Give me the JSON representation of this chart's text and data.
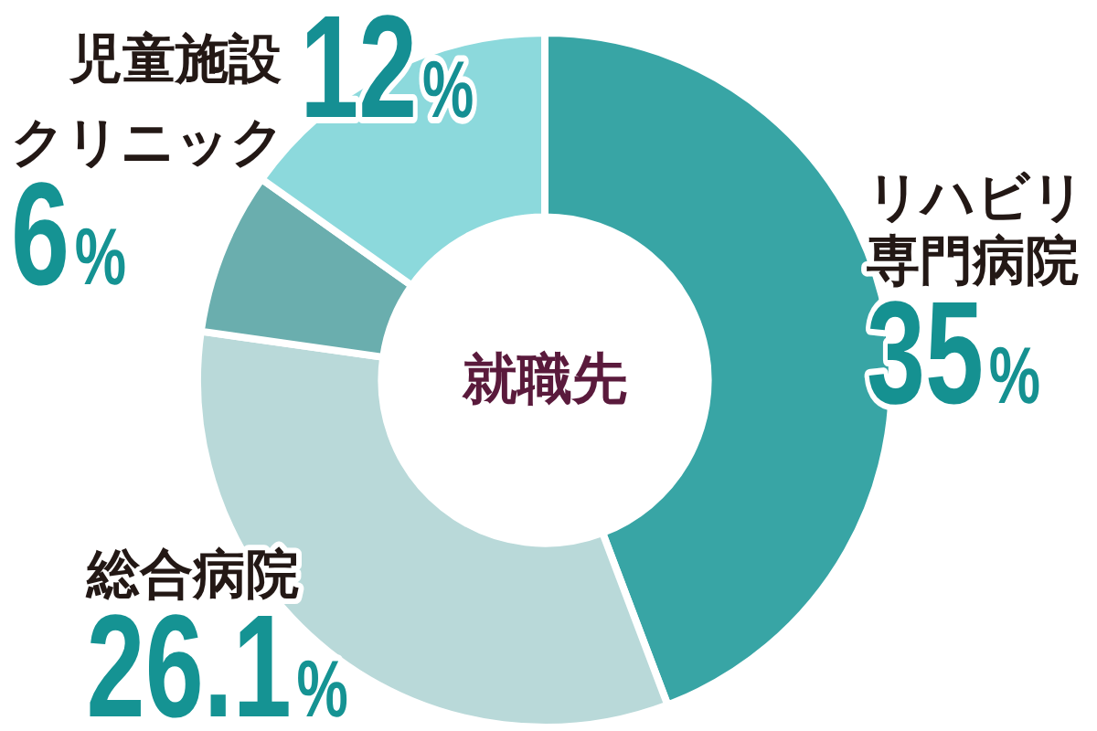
{
  "chart_data": {
    "type": "donut",
    "title": "就職先",
    "categories": [
      "リハビリ専門病院",
      "総合病院",
      "クリニック",
      "児童施設"
    ],
    "values": [
      35,
      26.1,
      6,
      12
    ],
    "colors": [
      "#38a5a5",
      "#b9d9d9",
      "#6aaeae",
      "#8cd9dc"
    ],
    "value_labels": [
      "35%",
      "26.1%",
      "6%",
      "12%"
    ]
  }
}
